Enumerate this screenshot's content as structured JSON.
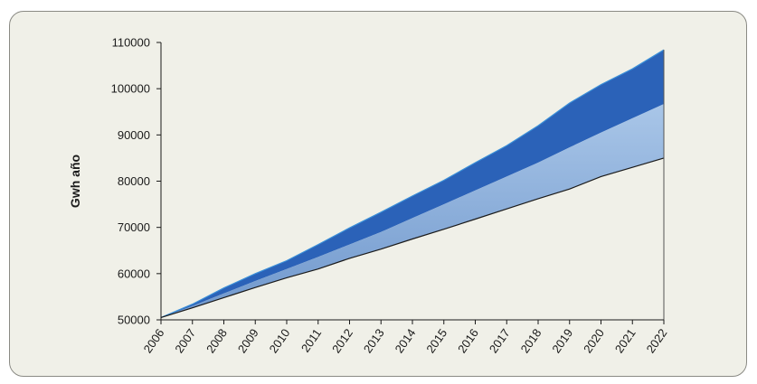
{
  "chart_data": {
    "type": "area",
    "title": "",
    "xlabel": "",
    "ylabel": "Gwh año",
    "ylim": [
      50000,
      110000
    ],
    "yticks": [
      50000,
      60000,
      70000,
      80000,
      90000,
      100000,
      110000
    ],
    "ytick_labels": [
      "50000",
      "60000",
      "70000",
      "80000",
      "90000",
      "100000",
      "110000"
    ],
    "x": [
      "2006",
      "2007",
      "2008",
      "2009",
      "2010",
      "2011",
      "2012",
      "2013",
      "2014",
      "2015",
      "2016",
      "2017",
      "2018",
      "2019",
      "2020",
      "2021",
      "2022"
    ],
    "grid": false,
    "series": [
      {
        "values": [
          50500,
          52600,
          54800,
          57000,
          59100,
          61000,
          63300,
          65300,
          67500,
          69600,
          71800,
          74000,
          76200,
          78300,
          81000,
          83000,
          85000
        ],
        "color": "#1a1a1a"
      },
      {
        "values": [
          50500,
          53000,
          55700,
          58400,
          61000,
          63600,
          66300,
          69000,
          72000,
          75000,
          78000,
          81000,
          84000,
          87300,
          90500,
          93600,
          96700
        ],
        "color": "#a9c6e8"
      },
      {
        "values": [
          50500,
          53400,
          56900,
          60000,
          62800,
          66300,
          69900,
          73300,
          76800,
          80200,
          84000,
          87700,
          92000,
          96900,
          100900,
          104300,
          108400
        ],
        "color": "#2b62b8"
      }
    ]
  },
  "colors": {
    "panel_bg": "#f0f0e8",
    "upper_band": "#2b62b8",
    "lower_band_top": "#a9c6e8",
    "lower_band_bottom": "#6f97cc",
    "base_line": "#1a1a1a",
    "upper_edge": "#3a8fd8"
  }
}
